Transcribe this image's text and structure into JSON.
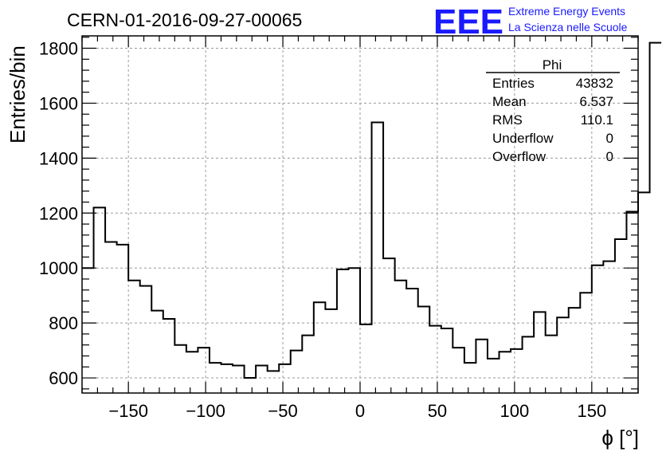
{
  "title": "CERN-01-2016-09-27-00065",
  "logo": {
    "mark": "EEE",
    "line1": "Extreme Energy Events",
    "line2": "La Scienza nelle Scuole",
    "color": "#1a1aff"
  },
  "stats": {
    "name": "Phi",
    "rows": [
      {
        "label": "Entries",
        "value": "43832"
      },
      {
        "label": "Mean",
        "value": "6.537"
      },
      {
        "label": "RMS",
        "value": "110.1"
      },
      {
        "label": "Underflow",
        "value": "0"
      },
      {
        "label": "Overflow",
        "value": "0"
      }
    ]
  },
  "chart_data": {
    "type": "histogram",
    "xlabel": "ϕ [°]",
    "ylabel": "Entries/bin",
    "xlim": [
      -180,
      180
    ],
    "ylim": [
      545,
      1845
    ],
    "xticks": [
      -150,
      -100,
      -50,
      0,
      50,
      100,
      150
    ],
    "yticks": [
      600,
      800,
      1000,
      1200,
      1400,
      1600,
      1800
    ],
    "bin_width": 7.5,
    "grid": true,
    "bin_edges_start": -180,
    "values": [
      1000,
      1220,
      1095,
      1085,
      955,
      935,
      845,
      815,
      720,
      695,
      710,
      655,
      650,
      645,
      600,
      645,
      625,
      650,
      700,
      755,
      875,
      850,
      995,
      1000,
      795,
      1530,
      1035,
      955,
      925,
      860,
      790,
      780,
      710,
      655,
      740,
      670,
      695,
      705,
      750,
      840,
      755,
      820,
      855,
      910,
      1010,
      1025,
      1105,
      1205,
      1275,
      1820
    ]
  }
}
